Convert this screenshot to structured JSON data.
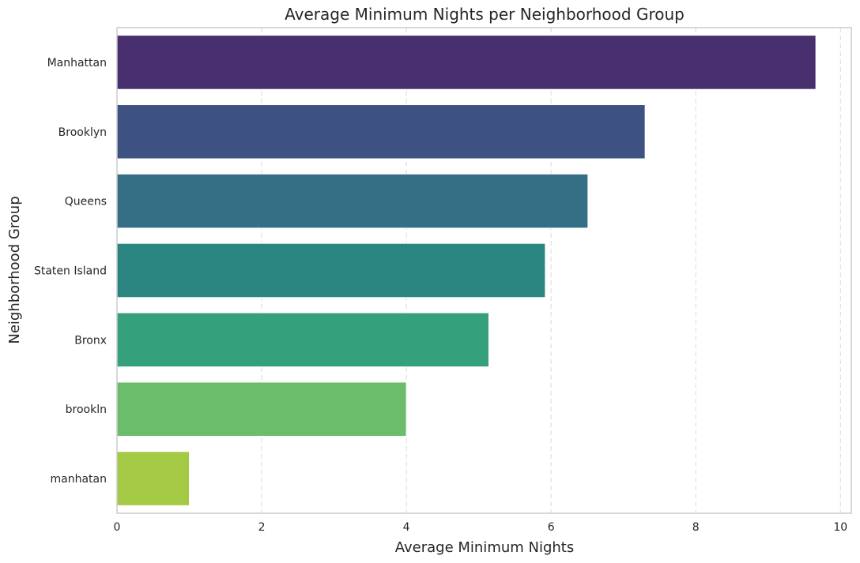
{
  "chart_data": {
    "type": "bar",
    "orientation": "horizontal",
    "title": "Average Minimum Nights per Neighborhood Group",
    "xlabel": "Average Minimum Nights",
    "ylabel": "Neighborhood Group",
    "categories": [
      "Manhattan",
      "Brooklyn",
      "Queens",
      "Staten Island",
      "Bronx",
      "brookln",
      "manhatan"
    ],
    "values": [
      9.66,
      7.3,
      6.51,
      5.92,
      5.14,
      4.0,
      1.0
    ],
    "colors": [
      "#482f6e",
      "#3e5282",
      "#356f86",
      "#2a8580",
      "#35a07c",
      "#6bbd6c",
      "#a4c944"
    ],
    "xlim": [
      0,
      10.15
    ],
    "xticks": [
      "0",
      "2",
      "4",
      "6",
      "8",
      "10"
    ],
    "grid": "vertical dashed"
  }
}
